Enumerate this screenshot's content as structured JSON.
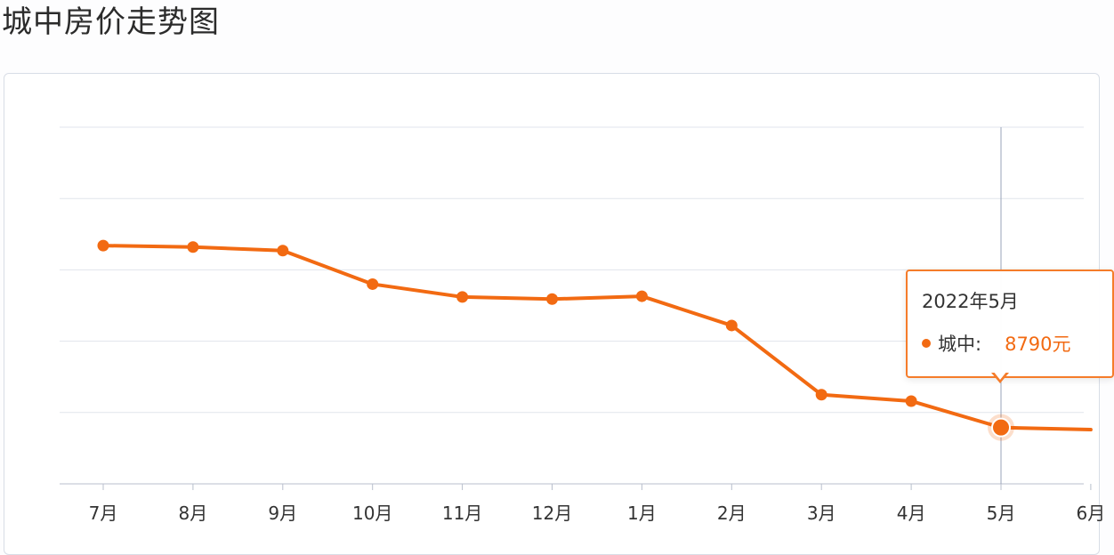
{
  "page": {
    "title": "城中房价走势图"
  },
  "chart_data": {
    "type": "line",
    "title": "城中房价走势图",
    "categories": [
      "7月",
      "8月",
      "9月",
      "10月",
      "11月",
      "12月",
      "1月",
      "2月",
      "3月",
      "4月",
      "5月",
      "6月"
    ],
    "series": [
      {
        "name": "城中",
        "color": "#f26a12",
        "values": [
          11340,
          11320,
          11270,
          10800,
          10620,
          10590,
          10630,
          10220,
          9250,
          9160,
          8790,
          8760
        ]
      }
    ],
    "ylim": [
      8000,
      13000
    ],
    "y_gridlines": [
      8000,
      9000,
      10000,
      11000,
      12000,
      13000
    ],
    "grid": true,
    "highlighted_index": 10
  },
  "tooltip": {
    "date": "2022年5月",
    "series_label": "城中:",
    "value": "8790元"
  }
}
